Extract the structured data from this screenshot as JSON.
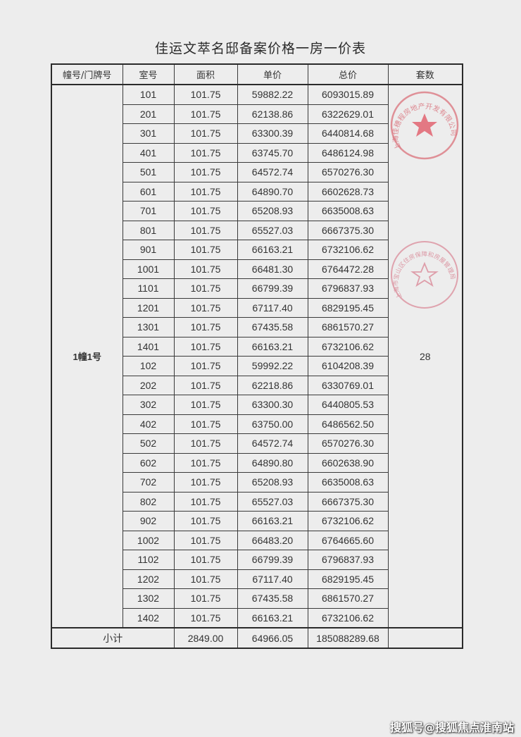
{
  "title": "佳运文萃名邸备案价格一房一价表",
  "headers": [
    "幢号/门牌号",
    "室号",
    "面积",
    "单价",
    "总价",
    "套数"
  ],
  "building": "1幢1号",
  "count": "28",
  "rows": [
    [
      "101",
      "101.75",
      "59882.22",
      "6093015.89"
    ],
    [
      "201",
      "101.75",
      "62138.86",
      "6322629.01"
    ],
    [
      "301",
      "101.75",
      "63300.39",
      "6440814.68"
    ],
    [
      "401",
      "101.75",
      "63745.70",
      "6486124.98"
    ],
    [
      "501",
      "101.75",
      "64572.74",
      "6570276.30"
    ],
    [
      "601",
      "101.75",
      "64890.70",
      "6602628.73"
    ],
    [
      "701",
      "101.75",
      "65208.93",
      "6635008.63"
    ],
    [
      "801",
      "101.75",
      "65527.03",
      "6667375.30"
    ],
    [
      "901",
      "101.75",
      "66163.21",
      "6732106.62"
    ],
    [
      "1001",
      "101.75",
      "66481.30",
      "6764472.28"
    ],
    [
      "1101",
      "101.75",
      "66799.39",
      "6796837.93"
    ],
    [
      "1201",
      "101.75",
      "67117.40",
      "6829195.45"
    ],
    [
      "1301",
      "101.75",
      "67435.58",
      "6861570.27"
    ],
    [
      "1401",
      "101.75",
      "66163.21",
      "6732106.62"
    ],
    [
      "102",
      "101.75",
      "59992.22",
      "6104208.39"
    ],
    [
      "202",
      "101.75",
      "62218.86",
      "6330769.01"
    ],
    [
      "302",
      "101.75",
      "63300.30",
      "6440805.53"
    ],
    [
      "402",
      "101.75",
      "63750.00",
      "6486562.50"
    ],
    [
      "502",
      "101.75",
      "64572.74",
      "6570276.30"
    ],
    [
      "602",
      "101.75",
      "64890.80",
      "6602638.90"
    ],
    [
      "702",
      "101.75",
      "65208.93",
      "6635008.63"
    ],
    [
      "802",
      "101.75",
      "65527.03",
      "6667375.30"
    ],
    [
      "902",
      "101.75",
      "66163.21",
      "6732106.62"
    ],
    [
      "1002",
      "101.75",
      "66483.20",
      "6764665.60"
    ],
    [
      "1102",
      "101.75",
      "66799.39",
      "6796837.93"
    ],
    [
      "1202",
      "101.75",
      "67117.40",
      "6829195.45"
    ],
    [
      "1302",
      "101.75",
      "67435.58",
      "6861570.27"
    ],
    [
      "1402",
      "101.75",
      "66163.21",
      "6732106.62"
    ]
  ],
  "subtotal": {
    "label": "小计",
    "area": "2849.00",
    "unit_price": "64966.05",
    "total": "185088289.68"
  },
  "stamps": [
    {
      "text": "上海佳穗程房地产开发有限公司",
      "color": "#d9707a"
    },
    {
      "text": "上海市宝山区住房保障和房屋管理局",
      "color": "#d98a98"
    }
  ],
  "watermark": "搜狐号@搜狐焦点淮南站"
}
